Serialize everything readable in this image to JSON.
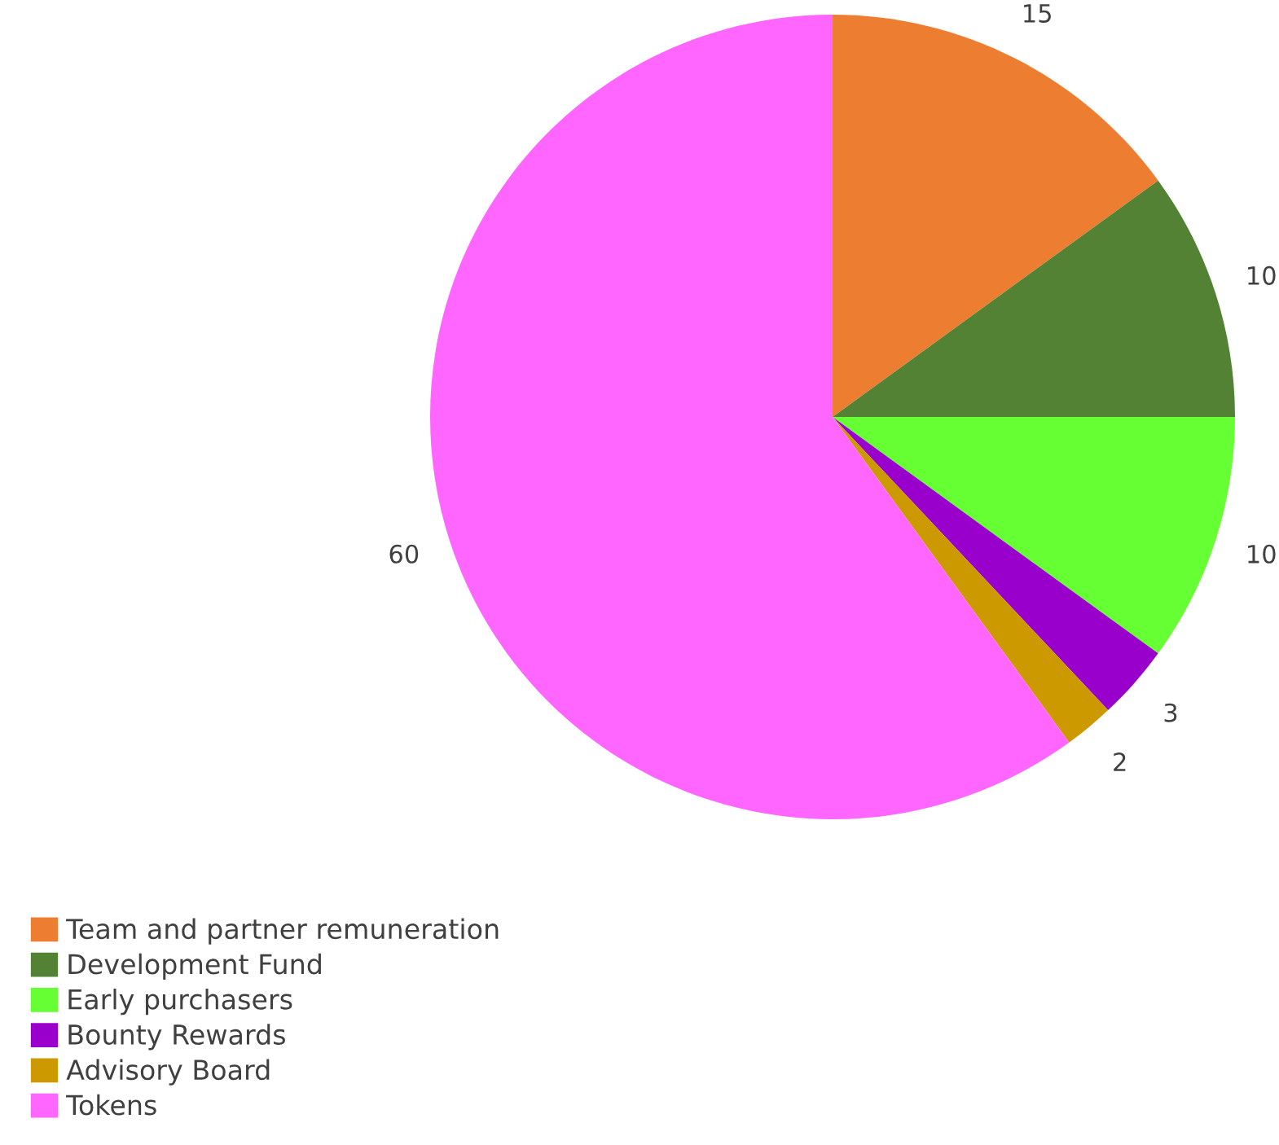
{
  "chart_data": {
    "type": "pie",
    "categories": [
      "Team and partner remuneration",
      "Development Fund",
      "Early purchasers",
      "Bounty Rewards",
      "Advisory Board",
      "Tokens"
    ],
    "values": [
      15,
      10,
      10,
      3,
      2,
      60
    ],
    "colors": [
      "#ed7d31",
      "#548235",
      "#66ff33",
      "#9900cc",
      "#cc9900",
      "#ff66ff"
    ],
    "data_labels": true,
    "legend": "bottom left"
  }
}
